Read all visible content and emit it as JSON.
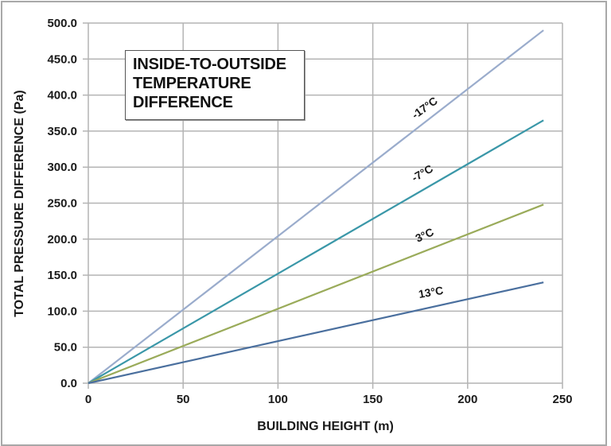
{
  "chart_data": {
    "type": "line",
    "title": "",
    "annotation": [
      "INSIDE-TO-OUTSIDE",
      "TEMPERATURE",
      "DIFFERENCE"
    ],
    "xlabel": "BUILDING HEIGHT (m)",
    "ylabel": "TOTAL PRESSURE DIFFERENCE (Pa)",
    "xlim": [
      0,
      250
    ],
    "ylim": [
      0,
      500
    ],
    "x_ticks": [
      "0",
      "50",
      "100",
      "150",
      "200",
      "250"
    ],
    "y_ticks": [
      "0.0",
      "50.0",
      "100.0",
      "150.0",
      "200.0",
      "250.0",
      "300.0",
      "350.0",
      "400.0",
      "450.0",
      "500.0"
    ],
    "grid": true,
    "legend_position": "inline labels",
    "x": [
      0,
      240
    ],
    "series": [
      {
        "name": "-17°C",
        "values": [
          0,
          490
        ],
        "color": "#9aaccc"
      },
      {
        "name": "-7°C",
        "values": [
          0,
          365
        ],
        "color": "#3a97a8"
      },
      {
        "name": "3°C",
        "values": [
          0,
          248
        ],
        "color": "#9aab5a"
      },
      {
        "name": "13°C",
        "values": [
          0,
          140
        ],
        "color": "#4a6f9e"
      }
    ]
  }
}
